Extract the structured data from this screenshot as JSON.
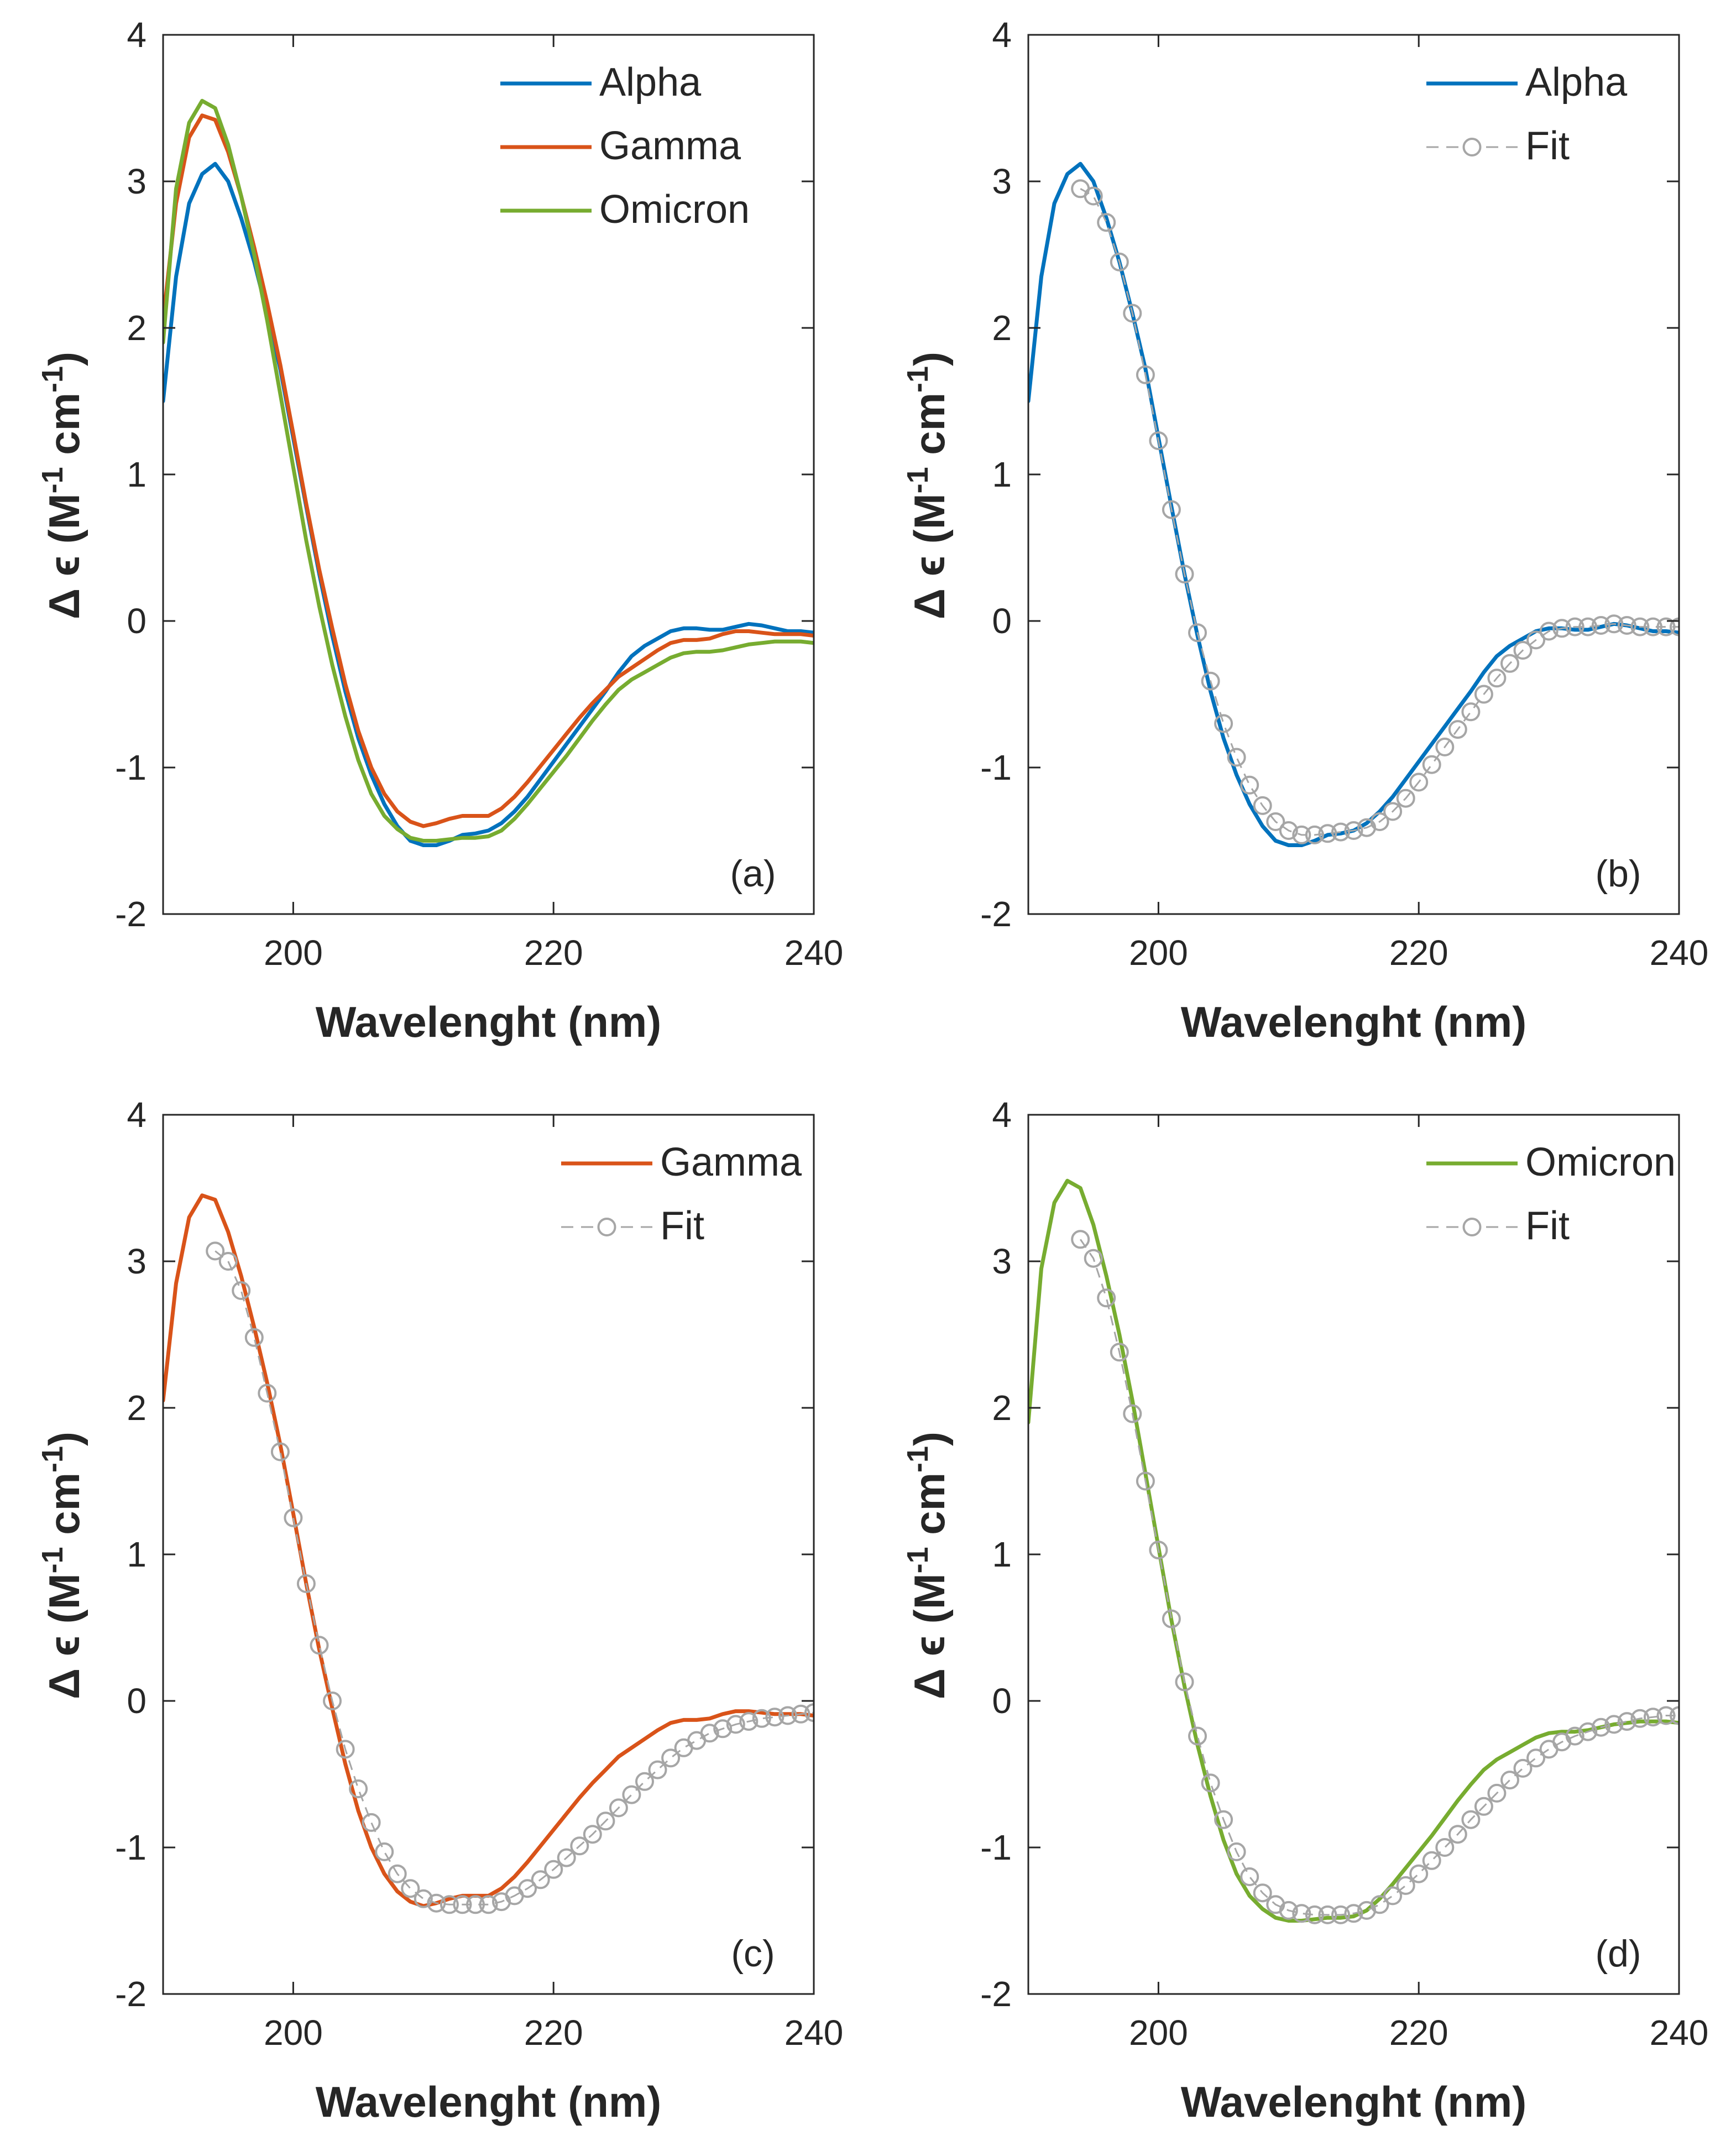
{
  "colors": {
    "alpha": "#0072BD",
    "gamma": "#D95319",
    "omicron": "#77AC30",
    "fit": "#A6A6A6",
    "axis": "#262626"
  },
  "chart_data": [
    {
      "type": "line",
      "panel_label": "(a)",
      "xlabel": "Wavelenght (nm)",
      "ylabel_base": "Δ ϵ (M",
      "ylabel_sup1": "-1",
      "ylabel_mid": " cm",
      "ylabel_sup2": "-1",
      "ylabel_end": ")",
      "xlim": [
        190,
        240
      ],
      "ylim": [
        -2,
        4
      ],
      "xticks": [
        200,
        220,
        240
      ],
      "yticks": [
        -2,
        -1,
        0,
        1,
        2,
        3,
        4
      ],
      "legend_position": "top-right",
      "series": [
        {
          "name": "Alpha",
          "color_key": "alpha",
          "style": "line",
          "x": [
            190,
            191,
            192,
            193,
            194,
            195,
            196,
            197,
            198,
            199,
            200,
            201,
            202,
            203,
            204,
            205,
            206,
            207,
            208,
            209,
            210,
            211,
            212,
            213,
            214,
            215,
            216,
            217,
            218,
            219,
            220,
            221,
            222,
            223,
            224,
            225,
            226,
            227,
            228,
            229,
            230,
            231,
            232,
            233,
            234,
            235,
            236,
            237,
            238,
            239,
            240
          ],
          "y": [
            1.5,
            2.35,
            2.85,
            3.05,
            3.12,
            3.0,
            2.75,
            2.45,
            2.1,
            1.72,
            1.25,
            0.78,
            0.32,
            -0.1,
            -0.48,
            -0.8,
            -1.05,
            -1.25,
            -1.4,
            -1.5,
            -1.53,
            -1.53,
            -1.5,
            -1.46,
            -1.45,
            -1.43,
            -1.38,
            -1.3,
            -1.2,
            -1.08,
            -0.96,
            -0.84,
            -0.72,
            -0.6,
            -0.48,
            -0.35,
            -0.24,
            -0.17,
            -0.12,
            -0.07,
            -0.05,
            -0.05,
            -0.06,
            -0.06,
            -0.04,
            -0.02,
            -0.03,
            -0.05,
            -0.07,
            -0.07,
            -0.08
          ]
        },
        {
          "name": "Gamma",
          "color_key": "gamma",
          "style": "line",
          "x": [
            190,
            191,
            192,
            193,
            194,
            195,
            196,
            197,
            198,
            199,
            200,
            201,
            202,
            203,
            204,
            205,
            206,
            207,
            208,
            209,
            210,
            211,
            212,
            213,
            214,
            215,
            216,
            217,
            218,
            219,
            220,
            221,
            222,
            223,
            224,
            225,
            226,
            227,
            228,
            229,
            230,
            231,
            232,
            233,
            234,
            235,
            236,
            237,
            238,
            239,
            240
          ],
          "y": [
            2.05,
            2.85,
            3.3,
            3.45,
            3.42,
            3.2,
            2.9,
            2.55,
            2.17,
            1.75,
            1.28,
            0.8,
            0.35,
            -0.05,
            -0.43,
            -0.75,
            -1.0,
            -1.18,
            -1.3,
            -1.37,
            -1.4,
            -1.38,
            -1.35,
            -1.33,
            -1.33,
            -1.33,
            -1.28,
            -1.2,
            -1.1,
            -0.99,
            -0.88,
            -0.77,
            -0.66,
            -0.56,
            -0.47,
            -0.38,
            -0.32,
            -0.26,
            -0.2,
            -0.15,
            -0.13,
            -0.13,
            -0.12,
            -0.09,
            -0.07,
            -0.07,
            -0.08,
            -0.09,
            -0.09,
            -0.09,
            -0.1
          ]
        },
        {
          "name": "Omicron",
          "color_key": "omicron",
          "style": "line",
          "x": [
            190,
            191,
            192,
            193,
            194,
            195,
            196,
            197,
            198,
            199,
            200,
            201,
            202,
            203,
            204,
            205,
            206,
            207,
            208,
            209,
            210,
            211,
            212,
            213,
            214,
            215,
            216,
            217,
            218,
            219,
            220,
            221,
            222,
            223,
            224,
            225,
            226,
            227,
            228,
            229,
            230,
            231,
            232,
            233,
            234,
            235,
            236,
            237,
            238,
            239,
            240
          ],
          "y": [
            1.9,
            2.95,
            3.4,
            3.55,
            3.5,
            3.25,
            2.9,
            2.5,
            2.05,
            1.55,
            1.05,
            0.55,
            0.1,
            -0.3,
            -0.65,
            -0.95,
            -1.18,
            -1.33,
            -1.42,
            -1.48,
            -1.5,
            -1.5,
            -1.49,
            -1.48,
            -1.48,
            -1.47,
            -1.43,
            -1.35,
            -1.25,
            -1.14,
            -1.03,
            -0.92,
            -0.8,
            -0.68,
            -0.57,
            -0.47,
            -0.4,
            -0.35,
            -0.3,
            -0.25,
            -0.22,
            -0.21,
            -0.21,
            -0.2,
            -0.18,
            -0.16,
            -0.15,
            -0.14,
            -0.14,
            -0.14,
            -0.15
          ]
        }
      ]
    },
    {
      "type": "line",
      "panel_label": "(b)",
      "xlabel": "Wavelenght (nm)",
      "ylabel_base": "Δ ϵ (M",
      "ylabel_sup1": "-1",
      "ylabel_mid": " cm",
      "ylabel_sup2": "-1",
      "ylabel_end": ")",
      "xlim": [
        190,
        240
      ],
      "ylim": [
        -2,
        4
      ],
      "xticks": [
        200,
        220,
        240
      ],
      "yticks": [
        -2,
        -1,
        0,
        1,
        2,
        3,
        4
      ],
      "legend_position": "top-right",
      "series": [
        {
          "name": "Alpha",
          "color_key": "alpha",
          "style": "line",
          "x": [
            190,
            191,
            192,
            193,
            194,
            195,
            196,
            197,
            198,
            199,
            200,
            201,
            202,
            203,
            204,
            205,
            206,
            207,
            208,
            209,
            210,
            211,
            212,
            213,
            214,
            215,
            216,
            217,
            218,
            219,
            220,
            221,
            222,
            223,
            224,
            225,
            226,
            227,
            228,
            229,
            230,
            231,
            232,
            233,
            234,
            235,
            236,
            237,
            238,
            239,
            240
          ],
          "y": [
            1.5,
            2.35,
            2.85,
            3.05,
            3.12,
            3.0,
            2.75,
            2.45,
            2.1,
            1.72,
            1.25,
            0.78,
            0.32,
            -0.1,
            -0.48,
            -0.8,
            -1.05,
            -1.25,
            -1.4,
            -1.5,
            -1.53,
            -1.53,
            -1.5,
            -1.46,
            -1.45,
            -1.43,
            -1.38,
            -1.3,
            -1.2,
            -1.08,
            -0.96,
            -0.84,
            -0.72,
            -0.6,
            -0.48,
            -0.35,
            -0.24,
            -0.17,
            -0.12,
            -0.07,
            -0.05,
            -0.05,
            -0.06,
            -0.06,
            -0.04,
            -0.02,
            -0.03,
            -0.05,
            -0.07,
            -0.07,
            -0.08
          ]
        },
        {
          "name": "Fit",
          "color_key": "fit",
          "style": "dashed-circle",
          "x": [
            194,
            195,
            196,
            197,
            198,
            199,
            200,
            201,
            202,
            203,
            204,
            205,
            206,
            207,
            208,
            209,
            210,
            211,
            212,
            213,
            214,
            215,
            216,
            217,
            218,
            219,
            220,
            221,
            222,
            223,
            224,
            225,
            226,
            227,
            228,
            229,
            230,
            231,
            232,
            233,
            234,
            235,
            236,
            237,
            238,
            239,
            240
          ],
          "y": [
            2.95,
            2.9,
            2.72,
            2.45,
            2.1,
            1.68,
            1.23,
            0.76,
            0.32,
            -0.08,
            -0.41,
            -0.7,
            -0.93,
            -1.12,
            -1.26,
            -1.37,
            -1.43,
            -1.46,
            -1.46,
            -1.45,
            -1.44,
            -1.43,
            -1.41,
            -1.37,
            -1.3,
            -1.21,
            -1.1,
            -0.98,
            -0.86,
            -0.74,
            -0.62,
            -0.5,
            -0.39,
            -0.29,
            -0.2,
            -0.13,
            -0.07,
            -0.05,
            -0.04,
            -0.04,
            -0.03,
            -0.02,
            -0.03,
            -0.04,
            -0.04,
            -0.04,
            -0.04
          ]
        }
      ]
    },
    {
      "type": "line",
      "panel_label": "(c)",
      "xlabel": "Wavelenght (nm)",
      "ylabel_base": "Δ ϵ (M",
      "ylabel_sup1": "-1",
      "ylabel_mid": " cm",
      "ylabel_sup2": "-1",
      "ylabel_end": ")",
      "xlim": [
        190,
        240
      ],
      "ylim": [
        -2,
        4
      ],
      "xticks": [
        200,
        220,
        240
      ],
      "yticks": [
        -2,
        -1,
        0,
        1,
        2,
        3,
        4
      ],
      "legend_position": "top-right",
      "series": [
        {
          "name": "Gamma",
          "color_key": "gamma",
          "style": "line",
          "x": [
            190,
            191,
            192,
            193,
            194,
            195,
            196,
            197,
            198,
            199,
            200,
            201,
            202,
            203,
            204,
            205,
            206,
            207,
            208,
            209,
            210,
            211,
            212,
            213,
            214,
            215,
            216,
            217,
            218,
            219,
            220,
            221,
            222,
            223,
            224,
            225,
            226,
            227,
            228,
            229,
            230,
            231,
            232,
            233,
            234,
            235,
            236,
            237,
            238,
            239,
            240
          ],
          "y": [
            2.05,
            2.85,
            3.3,
            3.45,
            3.42,
            3.2,
            2.9,
            2.55,
            2.17,
            1.75,
            1.28,
            0.8,
            0.35,
            -0.05,
            -0.43,
            -0.75,
            -1.0,
            -1.18,
            -1.3,
            -1.37,
            -1.4,
            -1.38,
            -1.35,
            -1.33,
            -1.33,
            -1.33,
            -1.28,
            -1.2,
            -1.1,
            -0.99,
            -0.88,
            -0.77,
            -0.66,
            -0.56,
            -0.47,
            -0.38,
            -0.32,
            -0.26,
            -0.2,
            -0.15,
            -0.13,
            -0.13,
            -0.12,
            -0.09,
            -0.07,
            -0.07,
            -0.08,
            -0.09,
            -0.09,
            -0.09,
            -0.1
          ]
        },
        {
          "name": "Fit",
          "color_key": "fit",
          "style": "dashed-circle",
          "x": [
            194,
            195,
            196,
            197,
            198,
            199,
            200,
            201,
            202,
            203,
            204,
            205,
            206,
            207,
            208,
            209,
            210,
            211,
            212,
            213,
            214,
            215,
            216,
            217,
            218,
            219,
            220,
            221,
            222,
            223,
            224,
            225,
            226,
            227,
            228,
            229,
            230,
            231,
            232,
            233,
            234,
            235,
            236,
            237,
            238,
            239,
            240
          ],
          "y": [
            3.07,
            3.0,
            2.8,
            2.48,
            2.1,
            1.7,
            1.25,
            0.8,
            0.38,
            0.0,
            -0.33,
            -0.6,
            -0.83,
            -1.03,
            -1.18,
            -1.28,
            -1.35,
            -1.38,
            -1.39,
            -1.39,
            -1.39,
            -1.39,
            -1.37,
            -1.33,
            -1.28,
            -1.22,
            -1.15,
            -1.07,
            -0.99,
            -0.91,
            -0.82,
            -0.73,
            -0.64,
            -0.55,
            -0.47,
            -0.39,
            -0.32,
            -0.27,
            -0.22,
            -0.19,
            -0.16,
            -0.14,
            -0.12,
            -0.11,
            -0.1,
            -0.09,
            -0.08
          ]
        }
      ]
    },
    {
      "type": "line",
      "panel_label": "(d)",
      "xlabel": "Wavelenght (nm)",
      "ylabel_base": "Δ ϵ (M",
      "ylabel_sup1": "-1",
      "ylabel_mid": " cm",
      "ylabel_sup2": "-1",
      "ylabel_end": ")",
      "xlim": [
        190,
        240
      ],
      "ylim": [
        -2,
        4
      ],
      "xticks": [
        200,
        220,
        240
      ],
      "yticks": [
        -2,
        -1,
        0,
        1,
        2,
        3,
        4
      ],
      "legend_position": "top-right",
      "series": [
        {
          "name": "Omicron",
          "color_key": "omicron",
          "style": "line",
          "x": [
            190,
            191,
            192,
            193,
            194,
            195,
            196,
            197,
            198,
            199,
            200,
            201,
            202,
            203,
            204,
            205,
            206,
            207,
            208,
            209,
            210,
            211,
            212,
            213,
            214,
            215,
            216,
            217,
            218,
            219,
            220,
            221,
            222,
            223,
            224,
            225,
            226,
            227,
            228,
            229,
            230,
            231,
            232,
            233,
            234,
            235,
            236,
            237,
            238,
            239,
            240
          ],
          "y": [
            1.9,
            2.95,
            3.4,
            3.55,
            3.5,
            3.25,
            2.9,
            2.5,
            2.05,
            1.55,
            1.05,
            0.55,
            0.1,
            -0.3,
            -0.65,
            -0.95,
            -1.18,
            -1.33,
            -1.42,
            -1.48,
            -1.5,
            -1.5,
            -1.49,
            -1.48,
            -1.48,
            -1.47,
            -1.43,
            -1.35,
            -1.25,
            -1.14,
            -1.03,
            -0.92,
            -0.8,
            -0.68,
            -0.57,
            -0.47,
            -0.4,
            -0.35,
            -0.3,
            -0.25,
            -0.22,
            -0.21,
            -0.21,
            -0.2,
            -0.18,
            -0.16,
            -0.15,
            -0.14,
            -0.14,
            -0.14,
            -0.15
          ]
        },
        {
          "name": "Fit",
          "color_key": "fit",
          "style": "dashed-circle",
          "x": [
            194,
            195,
            196,
            197,
            198,
            199,
            200,
            201,
            202,
            203,
            204,
            205,
            206,
            207,
            208,
            209,
            210,
            211,
            212,
            213,
            214,
            215,
            216,
            217,
            218,
            219,
            220,
            221,
            222,
            223,
            224,
            225,
            226,
            227,
            228,
            229,
            230,
            231,
            232,
            233,
            234,
            235,
            236,
            237,
            238,
            239,
            240
          ],
          "y": [
            3.15,
            3.02,
            2.75,
            2.38,
            1.96,
            1.5,
            1.03,
            0.56,
            0.13,
            -0.24,
            -0.56,
            -0.81,
            -1.03,
            -1.2,
            -1.31,
            -1.39,
            -1.43,
            -1.45,
            -1.46,
            -1.46,
            -1.46,
            -1.45,
            -1.43,
            -1.39,
            -1.33,
            -1.26,
            -1.18,
            -1.09,
            -1.0,
            -0.91,
            -0.81,
            -0.72,
            -0.63,
            -0.54,
            -0.46,
            -0.39,
            -0.33,
            -0.28,
            -0.24,
            -0.21,
            -0.18,
            -0.16,
            -0.14,
            -0.12,
            -0.11,
            -0.1,
            -0.1
          ]
        }
      ]
    }
  ]
}
